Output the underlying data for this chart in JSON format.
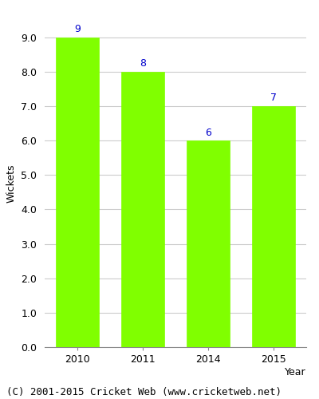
{
  "categories": [
    "2010",
    "2011",
    "2014",
    "2015"
  ],
  "values": [
    9,
    8,
    6,
    7
  ],
  "bar_color": "#80ff00",
  "bar_width": 0.65,
  "xlabel": "Year",
  "ylabel": "Wickets",
  "ylim": [
    0,
    9.5
  ],
  "yticks": [
    0.0,
    1.0,
    2.0,
    3.0,
    4.0,
    5.0,
    6.0,
    7.0,
    8.0,
    9.0
  ],
  "annotation_color": "#0000cc",
  "annotation_fontsize": 9,
  "axis_label_fontsize": 9,
  "tick_fontsize": 9,
  "grid_color": "#cccccc",
  "background_color": "#ffffff",
  "plot_background_color": "#ffffff",
  "footer_text": "(C) 2001-2015 Cricket Web (www.cricketweb.net)",
  "footer_fontsize": 9
}
